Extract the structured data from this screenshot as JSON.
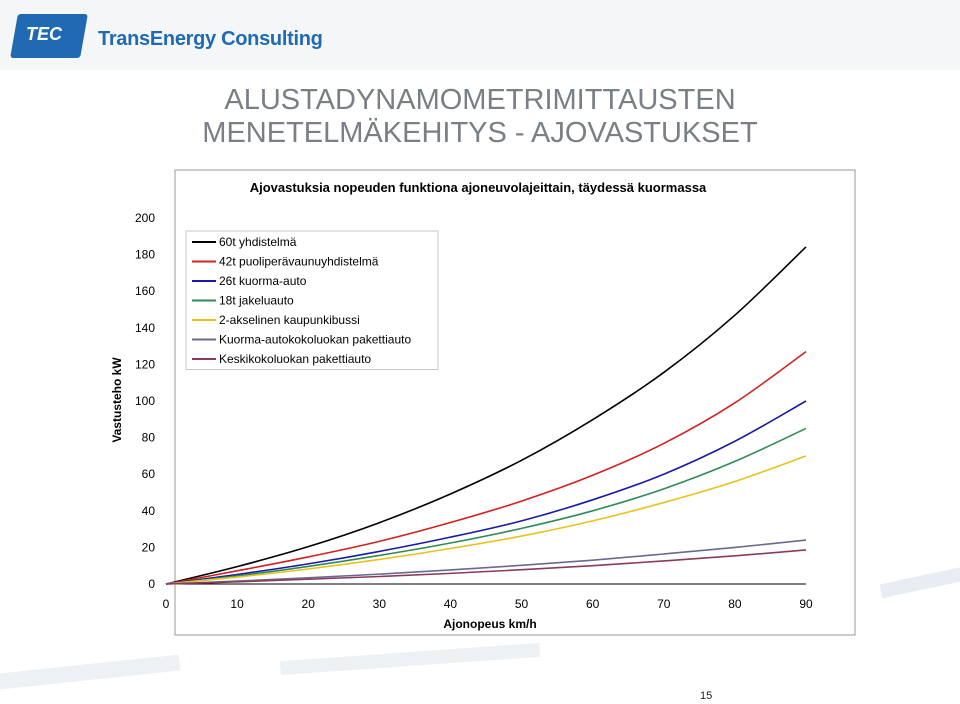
{
  "logo": {
    "badge": "TEC",
    "name": "TransEnergy Consulting"
  },
  "slide": {
    "title_line1": "ALUSTADYNAMOMETRIMITTAUSTEN",
    "title_line2": "MENETELMÄKEHITYS - AJOVASTUKSET",
    "page_number": "15"
  },
  "chart_data": {
    "type": "line",
    "title": "Ajovastuksia nopeuden funktiona ajoneuvolajeittain, täydessä kuormassa",
    "xlabel": "Ajonopeus km/h",
    "ylabel": "Vastusteho kW",
    "xlim": [
      0,
      90
    ],
    "ylim": [
      0,
      200
    ],
    "x_ticks": [
      0,
      10,
      20,
      30,
      40,
      50,
      60,
      70,
      80,
      90
    ],
    "y_ticks": [
      0,
      20,
      40,
      60,
      80,
      100,
      120,
      140,
      160,
      180,
      200
    ],
    "grid": false,
    "legend_position": "top-left",
    "x": [
      0,
      10,
      20,
      30,
      40,
      50,
      60,
      70,
      80,
      90
    ],
    "series": [
      {
        "name": "60t yhdistelmä",
        "color": "#000000",
        "values": [
          0,
          9.5,
          20.4,
          33.5,
          49.2,
          67.6,
          89.8,
          115.6,
          146.9,
          184.2
        ]
      },
      {
        "name": "42t puoliperävaunuyhdistelmä",
        "color": "#d42020",
        "values": [
          0,
          7.2,
          14.8,
          23.3,
          33.6,
          45.3,
          59.4,
          76.8,
          99.0,
          127.0
        ]
      },
      {
        "name": "26t kuorma-auto",
        "color": "#1a1aa6",
        "values": [
          0,
          5.2,
          11.0,
          17.8,
          25.6,
          34.5,
          46.0,
          60.0,
          78.0,
          100.0
        ]
      },
      {
        "name": "18t jakeluauto",
        "color": "#2e8b57",
        "values": [
          0,
          4.4,
          9.6,
          15.6,
          22.4,
          30.4,
          40.0,
          52.0,
          67.0,
          85.0
        ]
      },
      {
        "name": "2-akselinen kaupunkibussi",
        "color": "#e8c21a",
        "values": [
          0,
          3.8,
          8.2,
          13.4,
          19.4,
          26.2,
          34.5,
          44.5,
          56.0,
          70.0
        ]
      },
      {
        "name": "Kuorma-autokokoluokan pakettiauto",
        "color": "#6a6a8e",
        "values": [
          0,
          1.6,
          3.4,
          5.4,
          7.7,
          10.2,
          13.0,
          16.4,
          20.0,
          24.0
        ]
      },
      {
        "name": "Keskikokoluokan pakettiauto",
        "color": "#8b3a5c",
        "values": [
          0,
          1.2,
          2.6,
          4.1,
          5.8,
          7.8,
          10.0,
          12.6,
          15.4,
          18.6
        ]
      }
    ]
  }
}
